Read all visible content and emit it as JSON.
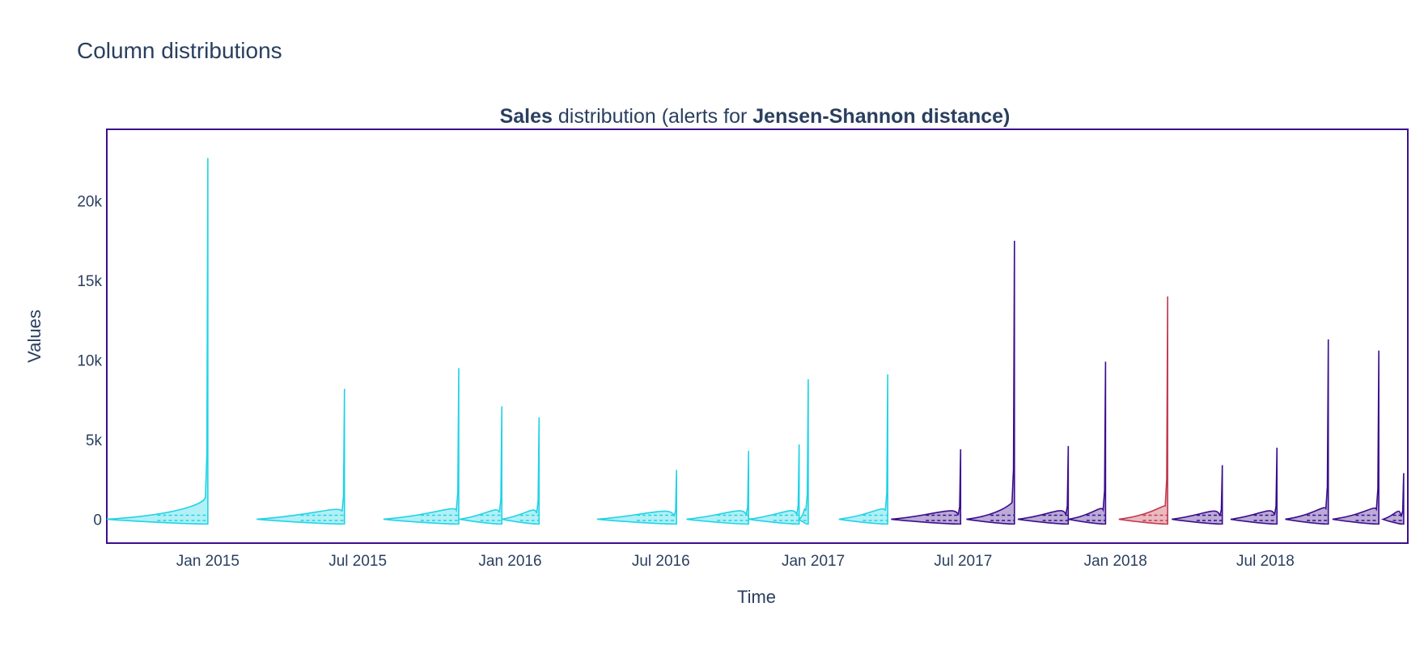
{
  "page": {
    "title": "Column distributions"
  },
  "chart_data": {
    "type": "violin",
    "title_parts": [
      {
        "text": "Sales",
        "bold": true
      },
      {
        "text": " distribution (alerts for ",
        "bold": false
      },
      {
        "text": "Jensen-Shannon distance)",
        "bold": true
      }
    ],
    "xlabel": "Time",
    "ylabel": "Values",
    "ylim": [
      -1500,
      24500
    ],
    "y_ticks": [
      0,
      5000,
      10000,
      15000,
      20000
    ],
    "y_tick_labels": [
      "0",
      "5k",
      "10k",
      "15k",
      "20k"
    ],
    "xlim": [
      "2014-09-01",
      "2018-12-20"
    ],
    "x_ticks": [
      "2015-01-01",
      "2015-07-01",
      "2016-01-01",
      "2016-07-01",
      "2017-01-01",
      "2017-07-01",
      "2018-01-01",
      "2018-07-01"
    ],
    "x_tick_labels": [
      "Jan 2015",
      "Jul 2015",
      "Jan 2016",
      "Jul 2016",
      "Jan 2017",
      "Jul 2017",
      "Jan 2018",
      "Jul 2018"
    ],
    "grid": false,
    "legend": "none",
    "colors": {
      "reference": "#22d3e6",
      "analysis": "#3b0e8c",
      "alert": "#c23a4e",
      "frame": "#3b0e8c"
    },
    "series": [
      {
        "start": "2014-09-01",
        "end": "2015-01-01",
        "max": 22700,
        "period": "reference",
        "alert": false
      },
      {
        "start": "2015-03-01",
        "end": "2015-06-15",
        "max": 8200,
        "period": "reference",
        "alert": false
      },
      {
        "start": "2015-08-01",
        "end": "2015-10-31",
        "max": 9500,
        "period": "reference",
        "alert": false
      },
      {
        "start": "2015-11-01",
        "end": "2015-12-22",
        "max": 7100,
        "period": "reference",
        "alert": false
      },
      {
        "start": "2015-12-22",
        "end": "2016-02-05",
        "max": 6400,
        "period": "reference",
        "alert": false
      },
      {
        "start": "2016-04-15",
        "end": "2016-07-20",
        "max": 3100,
        "period": "reference",
        "alert": false
      },
      {
        "start": "2016-08-01",
        "end": "2016-10-15",
        "max": 4300,
        "period": "reference",
        "alert": false
      },
      {
        "start": "2016-10-15",
        "end": "2016-12-15",
        "max": 4700,
        "period": "reference",
        "alert": false
      },
      {
        "start": "2016-12-15",
        "end": "2016-12-26",
        "max": 8800,
        "period": "reference",
        "alert": false
      },
      {
        "start": "2017-02-01",
        "end": "2017-04-01",
        "max": 9100,
        "period": "reference",
        "alert": false
      },
      {
        "start": "2017-04-05",
        "end": "2017-06-28",
        "max": 4400,
        "period": "analysis",
        "alert": false
      },
      {
        "start": "2017-07-05",
        "end": "2017-09-01",
        "max": 17500,
        "period": "analysis",
        "alert": false
      },
      {
        "start": "2017-09-05",
        "end": "2017-11-05",
        "max": 4600,
        "period": "analysis",
        "alert": false
      },
      {
        "start": "2017-11-05",
        "end": "2017-12-20",
        "max": 9900,
        "period": "analysis",
        "alert": false
      },
      {
        "start": "2018-01-05",
        "end": "2018-03-05",
        "max": 14000,
        "period": "analysis",
        "alert": true
      },
      {
        "start": "2018-03-10",
        "end": "2018-05-10",
        "max": 3400,
        "period": "analysis",
        "alert": false
      },
      {
        "start": "2018-05-20",
        "end": "2018-07-15",
        "max": 4500,
        "period": "analysis",
        "alert": false
      },
      {
        "start": "2018-07-25",
        "end": "2018-09-15",
        "max": 11300,
        "period": "analysis",
        "alert": false
      },
      {
        "start": "2018-09-20",
        "end": "2018-11-15",
        "max": 10600,
        "period": "analysis",
        "alert": false
      },
      {
        "start": "2018-11-20",
        "end": "2018-12-15",
        "max": 2900,
        "period": "analysis",
        "alert": false
      }
    ]
  }
}
